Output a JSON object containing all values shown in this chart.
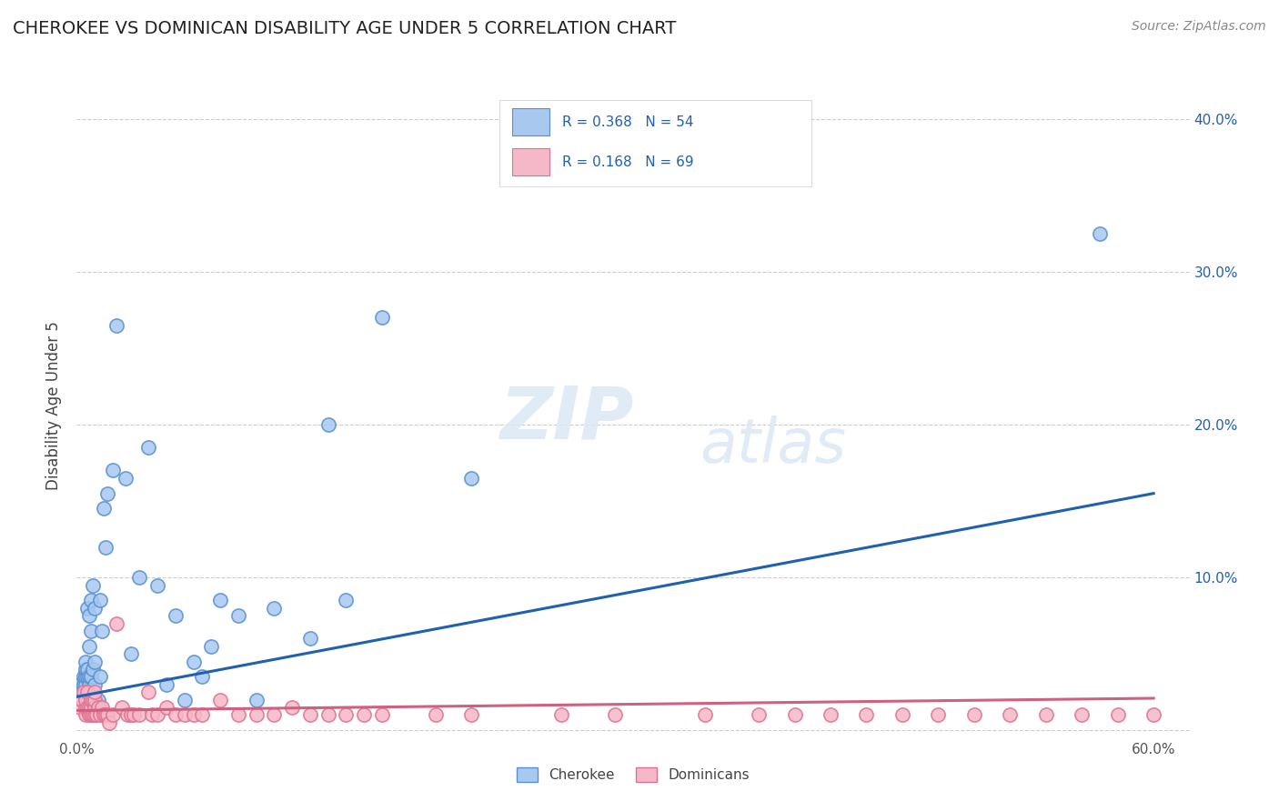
{
  "title": "CHEROKEE VS DOMINICAN DISABILITY AGE UNDER 5 CORRELATION CHART",
  "source": "Source: ZipAtlas.com",
  "ylabel": "Disability Age Under 5",
  "xlim": [
    0.0,
    0.62
  ],
  "ylim": [
    -0.005,
    0.43
  ],
  "xticks": [
    0.0,
    0.6
  ],
  "xticklabels": [
    "0.0%",
    "60.0%"
  ],
  "yticks_right": [
    0.1,
    0.2,
    0.3,
    0.4
  ],
  "yticklabels_right": [
    "10.0%",
    "20.0%",
    "30.0%",
    "40.0%"
  ],
  "cherokee_color": "#A8C8F0",
  "cherokee_edge_color": "#5590D0",
  "dominican_color": "#F5B8C8",
  "dominican_edge_color": "#E07090",
  "cherokee_line_color": "#2060B0",
  "dominican_line_color": "#D06080",
  "legend_text_color": "#2060B0",
  "background_color": "#FFFFFF",
  "cherokee_x": [
    0.002,
    0.003,
    0.004,
    0.004,
    0.005,
    0.005,
    0.005,
    0.005,
    0.005,
    0.006,
    0.006,
    0.006,
    0.007,
    0.007,
    0.007,
    0.007,
    0.008,
    0.008,
    0.008,
    0.009,
    0.009,
    0.01,
    0.01,
    0.01,
    0.012,
    0.013,
    0.013,
    0.014,
    0.015,
    0.016,
    0.017,
    0.02,
    0.022,
    0.027,
    0.03,
    0.035,
    0.04,
    0.045,
    0.05,
    0.055,
    0.06,
    0.065,
    0.07,
    0.075,
    0.08,
    0.09,
    0.1,
    0.11,
    0.13,
    0.14,
    0.15,
    0.17,
    0.22,
    0.57
  ],
  "cherokee_y": [
    0.03,
    0.025,
    0.03,
    0.035,
    0.025,
    0.03,
    0.035,
    0.04,
    0.045,
    0.035,
    0.04,
    0.08,
    0.03,
    0.035,
    0.055,
    0.075,
    0.035,
    0.065,
    0.085,
    0.04,
    0.095,
    0.03,
    0.045,
    0.08,
    0.02,
    0.035,
    0.085,
    0.065,
    0.145,
    0.12,
    0.155,
    0.17,
    0.265,
    0.165,
    0.05,
    0.1,
    0.185,
    0.095,
    0.03,
    0.075,
    0.02,
    0.045,
    0.035,
    0.055,
    0.085,
    0.075,
    0.02,
    0.08,
    0.06,
    0.2,
    0.085,
    0.27,
    0.165,
    0.325
  ],
  "dominican_x": [
    0.002,
    0.003,
    0.004,
    0.005,
    0.005,
    0.005,
    0.006,
    0.006,
    0.007,
    0.007,
    0.008,
    0.008,
    0.008,
    0.009,
    0.009,
    0.01,
    0.01,
    0.01,
    0.01,
    0.011,
    0.012,
    0.013,
    0.014,
    0.015,
    0.016,
    0.017,
    0.018,
    0.02,
    0.022,
    0.025,
    0.028,
    0.03,
    0.032,
    0.035,
    0.04,
    0.042,
    0.045,
    0.05,
    0.055,
    0.06,
    0.065,
    0.07,
    0.08,
    0.09,
    0.1,
    0.11,
    0.12,
    0.13,
    0.14,
    0.15,
    0.16,
    0.17,
    0.2,
    0.22,
    0.27,
    0.3,
    0.35,
    0.38,
    0.4,
    0.42,
    0.44,
    0.46,
    0.48,
    0.5,
    0.52,
    0.54,
    0.56,
    0.58,
    0.6
  ],
  "dominican_y": [
    0.015,
    0.02,
    0.025,
    0.01,
    0.015,
    0.02,
    0.015,
    0.025,
    0.01,
    0.015,
    0.01,
    0.015,
    0.02,
    0.01,
    0.02,
    0.01,
    0.015,
    0.02,
    0.025,
    0.01,
    0.015,
    0.01,
    0.015,
    0.01,
    0.01,
    0.01,
    0.005,
    0.01,
    0.07,
    0.015,
    0.01,
    0.01,
    0.01,
    0.01,
    0.025,
    0.01,
    0.01,
    0.015,
    0.01,
    0.01,
    0.01,
    0.01,
    0.02,
    0.01,
    0.01,
    0.01,
    0.015,
    0.01,
    0.01,
    0.01,
    0.01,
    0.01,
    0.01,
    0.01,
    0.01,
    0.01,
    0.01,
    0.01,
    0.01,
    0.01,
    0.01,
    0.01,
    0.01,
    0.01,
    0.01,
    0.01,
    0.01,
    0.01,
    0.01
  ],
  "cherokee_trend_x": [
    0.0,
    0.6
  ],
  "cherokee_trend_y": [
    0.022,
    0.155
  ],
  "dominican_trend_x": [
    0.0,
    0.6
  ],
  "dominican_trend_y": [
    0.013,
    0.021
  ],
  "watermark_zip": "ZIP",
  "watermark_atlas": "atlas",
  "title_fontsize": 14,
  "source_fontsize": 10,
  "tick_fontsize": 11,
  "ylabel_fontsize": 12
}
